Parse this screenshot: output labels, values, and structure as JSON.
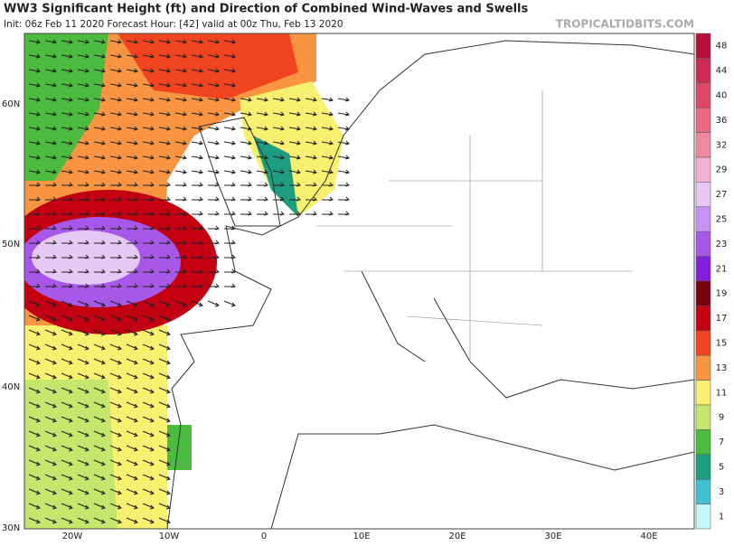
{
  "header": {
    "title": "WW3 Significant Height (ft) and Direction of Combined Wind-Waves and Swells",
    "subtitle": "Init: 06z Feb 11 2020   Forecast Hour: [42]   valid at 00z Thu, Feb 13 2020",
    "watermark": "TROPICALTIDBITS.COM"
  },
  "axes": {
    "lat_labels": [
      "60N",
      "50N",
      "40N",
      "30N"
    ],
    "lon_labels": [
      "20W",
      "10W",
      "0",
      "10E",
      "20E",
      "30E",
      "40E"
    ]
  },
  "colorbar": {
    "labels": [
      48,
      44,
      40,
      36,
      32,
      29,
      27,
      25,
      23,
      21,
      19,
      17,
      15,
      13,
      11,
      9,
      7,
      5,
      3,
      1
    ],
    "colors": [
      "#b8103e",
      "#cc2c54",
      "#de4866",
      "#ea6880",
      "#f088a2",
      "#f2b0d4",
      "#e6c8f4",
      "#c890f0",
      "#a858e8",
      "#8420dc",
      "#780012",
      "#c20012",
      "#f04420",
      "#f89442",
      "#f8f070",
      "#c4e66c",
      "#4cbc40",
      "#1e9c80",
      "#40c0d0",
      "#c4f8f8"
    ]
  }
}
